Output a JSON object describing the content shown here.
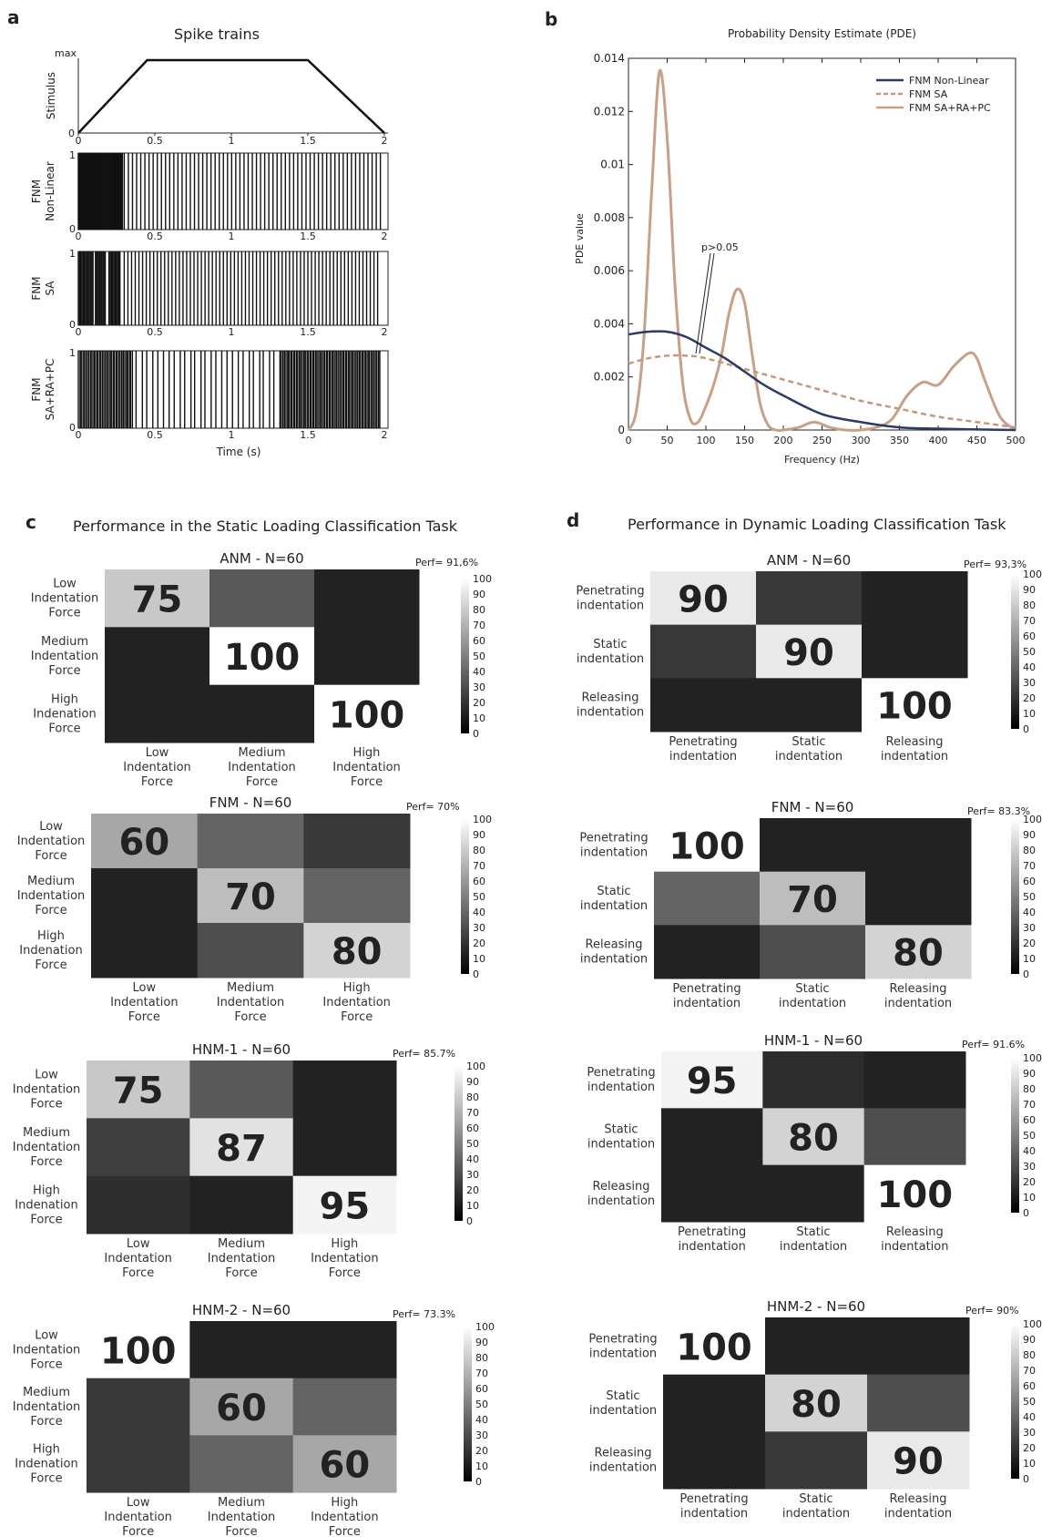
{
  "panel_a": {
    "letter": "a",
    "title": "Spike trains",
    "xlabel": "Time (s)",
    "x_ticks": [
      "0",
      "0.5",
      "1",
      "1.5",
      "2"
    ],
    "stimulus": {
      "ylabel": "Stimulus",
      "y_top": "max",
      "y_bottom": "0"
    },
    "rasters": [
      {
        "ylabel_lines": [
          "FNM",
          "Non-Linear"
        ],
        "y_top": "1",
        "y_bottom": "0"
      },
      {
        "ylabel_lines": [
          "FNM",
          "SA"
        ],
        "y_top": "1",
        "y_bottom": "0"
      },
      {
        "ylabel_lines": [
          "FNM",
          "SA+RA+PC"
        ],
        "y_top": "1",
        "y_bottom": "0"
      }
    ]
  },
  "panel_b": {
    "letter": "b",
    "annotation": "p>0.05"
  },
  "panel_c": {
    "letter": "c",
    "title": "Performance in the Static Loading Classification Task"
  },
  "panel_d": {
    "letter": "d",
    "title": "Performance in Dynamic Loading Classification Task"
  },
  "colorbar_ticks": [
    "100",
    "90",
    "80",
    "70",
    "60",
    "50",
    "40",
    "30",
    "20",
    "10",
    "0"
  ],
  "chart_data": [
    {
      "type": "line",
      "title": "Probability Density Estimate (PDE)",
      "xlabel": "Frequency (Hz)",
      "ylabel": "PDE value",
      "xlim": [
        0,
        500
      ],
      "ylim": [
        0,
        0.014
      ],
      "x_ticks": [
        "0",
        "50",
        "100",
        "150",
        "200",
        "250",
        "300",
        "350",
        "400",
        "450",
        "500"
      ],
      "y_ticks": [
        "0",
        "0.002",
        "0.004",
        "0.006",
        "0.008",
        "0.01",
        "0.012",
        "0.014"
      ],
      "legend": "top-right",
      "series": [
        {
          "name": "FNM Non-Linear",
          "color": "#2b3a67",
          "style": "solid",
          "x": [
            0,
            25,
            50,
            75,
            100,
            125,
            150,
            175,
            200,
            250,
            300,
            350,
            400,
            450,
            500
          ],
          "y": [
            0.0036,
            0.0037,
            0.0037,
            0.0035,
            0.0031,
            0.0027,
            0.0022,
            0.0017,
            0.0013,
            0.0006,
            0.0003,
            0.0001,
            5e-05,
            2e-05,
            0.0
          ]
        },
        {
          "name": "FNM SA",
          "color": "#c8977a",
          "style": "dashed",
          "x": [
            0,
            25,
            50,
            75,
            100,
            150,
            200,
            250,
            300,
            350,
            400,
            450,
            500
          ],
          "y": [
            0.0025,
            0.0027,
            0.0028,
            0.0028,
            0.0027,
            0.0023,
            0.0019,
            0.0015,
            0.0011,
            0.0008,
            0.0005,
            0.0003,
            0.0001
          ]
        },
        {
          "name": "FNM SA+RA+PC",
          "color": "#c8a088",
          "style": "solid",
          "x": [
            0,
            10,
            20,
            30,
            40,
            50,
            60,
            70,
            80,
            90,
            100,
            110,
            120,
            130,
            140,
            150,
            160,
            170,
            180,
            190,
            200,
            220,
            240,
            260,
            280,
            300,
            320,
            340,
            360,
            380,
            400,
            420,
            440,
            450,
            460,
            480,
            500
          ],
          "y": [
            0.0,
            0.0007,
            0.0035,
            0.009,
            0.0135,
            0.011,
            0.0055,
            0.0018,
            0.0004,
            0.0003,
            0.0009,
            0.0017,
            0.0028,
            0.0044,
            0.0053,
            0.0048,
            0.0028,
            0.001,
            0.0002,
            0.0,
            0.0,
            0.0001,
            0.0003,
            0.0001,
            0.0,
            0.0,
            0.0001,
            0.0004,
            0.0013,
            0.0018,
            0.0017,
            0.0024,
            0.0029,
            0.0027,
            0.0019,
            0.0005,
            0.0
          ]
        }
      ]
    },
    {
      "type": "heatmap",
      "panel": "c",
      "title": "ANM - N=60",
      "perf": "Perf= 91,6%",
      "rows": [
        [
          "Low",
          "Indentation",
          "Force"
        ],
        [
          "Medium",
          "Indentation",
          "Force"
        ],
        [
          "High",
          "Indenation",
          "Force"
        ]
      ],
      "cols": [
        [
          "Low",
          "Indentation",
          "Force"
        ],
        [
          "Medium",
          "Indentation",
          "Force"
        ],
        [
          "High",
          "Indentation",
          "Force"
        ]
      ],
      "values": [
        [
          75,
          25,
          0
        ],
        [
          0,
          100,
          0
        ],
        [
          0,
          0,
          100
        ]
      ],
      "labels": [
        "75",
        "100",
        "100"
      ]
    },
    {
      "type": "heatmap",
      "panel": "c",
      "title": "FNM - N=60",
      "perf": "Perf= 70%",
      "rows": [
        [
          "Low",
          "Indentation",
          "Force"
        ],
        [
          "Medium",
          "Indentation",
          "Force"
        ],
        [
          "High",
          "Indenation",
          "Force"
        ]
      ],
      "cols": [
        [
          "Low",
          "Indentation",
          "Force"
        ],
        [
          "Medium",
          "Indentation",
          "Force"
        ],
        [
          "High",
          "Indentation",
          "Force"
        ]
      ],
      "values": [
        [
          60,
          30,
          10
        ],
        [
          0,
          70,
          30
        ],
        [
          0,
          20,
          80
        ]
      ],
      "labels": [
        "60",
        "70",
        "80"
      ]
    },
    {
      "type": "heatmap",
      "panel": "c",
      "title": "HNM-1 - N=60",
      "perf": "Perf= 85.7%",
      "rows": [
        [
          "Low",
          "Indentation",
          "Force"
        ],
        [
          "Medium",
          "Indentation",
          "Force"
        ],
        [
          "High",
          "Indenation",
          "Force"
        ]
      ],
      "cols": [
        [
          "Low",
          "Indentation",
          "Force"
        ],
        [
          "Medium",
          "Indentation",
          "Force"
        ],
        [
          "High",
          "Indentation",
          "Force"
        ]
      ],
      "values": [
        [
          75,
          25,
          0
        ],
        [
          13,
          87,
          0
        ],
        [
          5,
          0,
          95
        ]
      ],
      "labels": [
        "75",
        "87",
        "95"
      ]
    },
    {
      "type": "heatmap",
      "panel": "c",
      "title": "HNM-2 - N=60",
      "perf": "Perf= 73.3%",
      "rows": [
        [
          "Low",
          "Indentation",
          "Force"
        ],
        [
          "Medium",
          "Indentation",
          "Force"
        ],
        [
          "High",
          "Indenation",
          "Force"
        ]
      ],
      "cols": [
        [
          "Low",
          "Indentation",
          "Force"
        ],
        [
          "Medium",
          "Indentation",
          "Force"
        ],
        [
          "High",
          "Indentation",
          "Force"
        ]
      ],
      "values": [
        [
          100,
          0,
          0
        ],
        [
          10,
          60,
          30
        ],
        [
          10,
          30,
          60
        ]
      ],
      "labels": [
        "100",
        "60",
        "60"
      ]
    },
    {
      "type": "heatmap",
      "panel": "d",
      "title": "ANM - N=60",
      "perf": "Perf= 93,3%",
      "rows": [
        [
          "Penetrating",
          "indentation"
        ],
        [
          "Static",
          "indentation"
        ],
        [
          "Releasing",
          "indentation"
        ]
      ],
      "cols": [
        [
          "Penetrating",
          "indentation"
        ],
        [
          "Static",
          "indentation"
        ],
        [
          "Releasing",
          "indentation"
        ]
      ],
      "values": [
        [
          90,
          10,
          0
        ],
        [
          10,
          90,
          0
        ],
        [
          0,
          0,
          100
        ]
      ],
      "labels": [
        "90",
        "90",
        "100"
      ]
    },
    {
      "type": "heatmap",
      "panel": "d",
      "title": "FNM - N=60",
      "perf": "Perf= 83.3%",
      "rows": [
        [
          "Penetrating",
          "indentation"
        ],
        [
          "Static",
          "indentation"
        ],
        [
          "Releasing",
          "indentation"
        ]
      ],
      "cols": [
        [
          "Penetrating",
          "indentation"
        ],
        [
          "Static",
          "indentation"
        ],
        [
          "Releasing",
          "indentation"
        ]
      ],
      "values": [
        [
          100,
          0,
          0
        ],
        [
          30,
          70,
          0
        ],
        [
          0,
          20,
          80
        ]
      ],
      "labels": [
        "100",
        "70",
        "80"
      ]
    },
    {
      "type": "heatmap",
      "panel": "d",
      "title": "HNM-1 - N=60",
      "perf": "Perf= 91.6%",
      "rows": [
        [
          "Penetrating",
          "indentation"
        ],
        [
          "Static",
          "indentation"
        ],
        [
          "Releasing",
          "indentation"
        ]
      ],
      "cols": [
        [
          "Penetrating",
          "indentation"
        ],
        [
          "Static",
          "indentation"
        ],
        [
          "Releasing",
          "indentation"
        ]
      ],
      "values": [
        [
          95,
          5,
          0
        ],
        [
          0,
          80,
          20
        ],
        [
          0,
          0,
          100
        ]
      ],
      "labels": [
        "95",
        "80",
        "100"
      ]
    },
    {
      "type": "heatmap",
      "panel": "d",
      "title": "HNM-2 - N=60",
      "perf": "Perf= 90%",
      "rows": [
        [
          "Penetrating",
          "indentation"
        ],
        [
          "Static",
          "indentation"
        ],
        [
          "Releasing",
          "indentation"
        ]
      ],
      "cols": [
        [
          "Penetrating",
          "indentation"
        ],
        [
          "Static",
          "indentation"
        ],
        [
          "Releasing",
          "indentation"
        ]
      ],
      "values": [
        [
          100,
          0,
          0
        ],
        [
          0,
          80,
          20
        ],
        [
          0,
          10,
          90
        ]
      ],
      "labels": [
        "100",
        "80",
        "90"
      ]
    }
  ]
}
